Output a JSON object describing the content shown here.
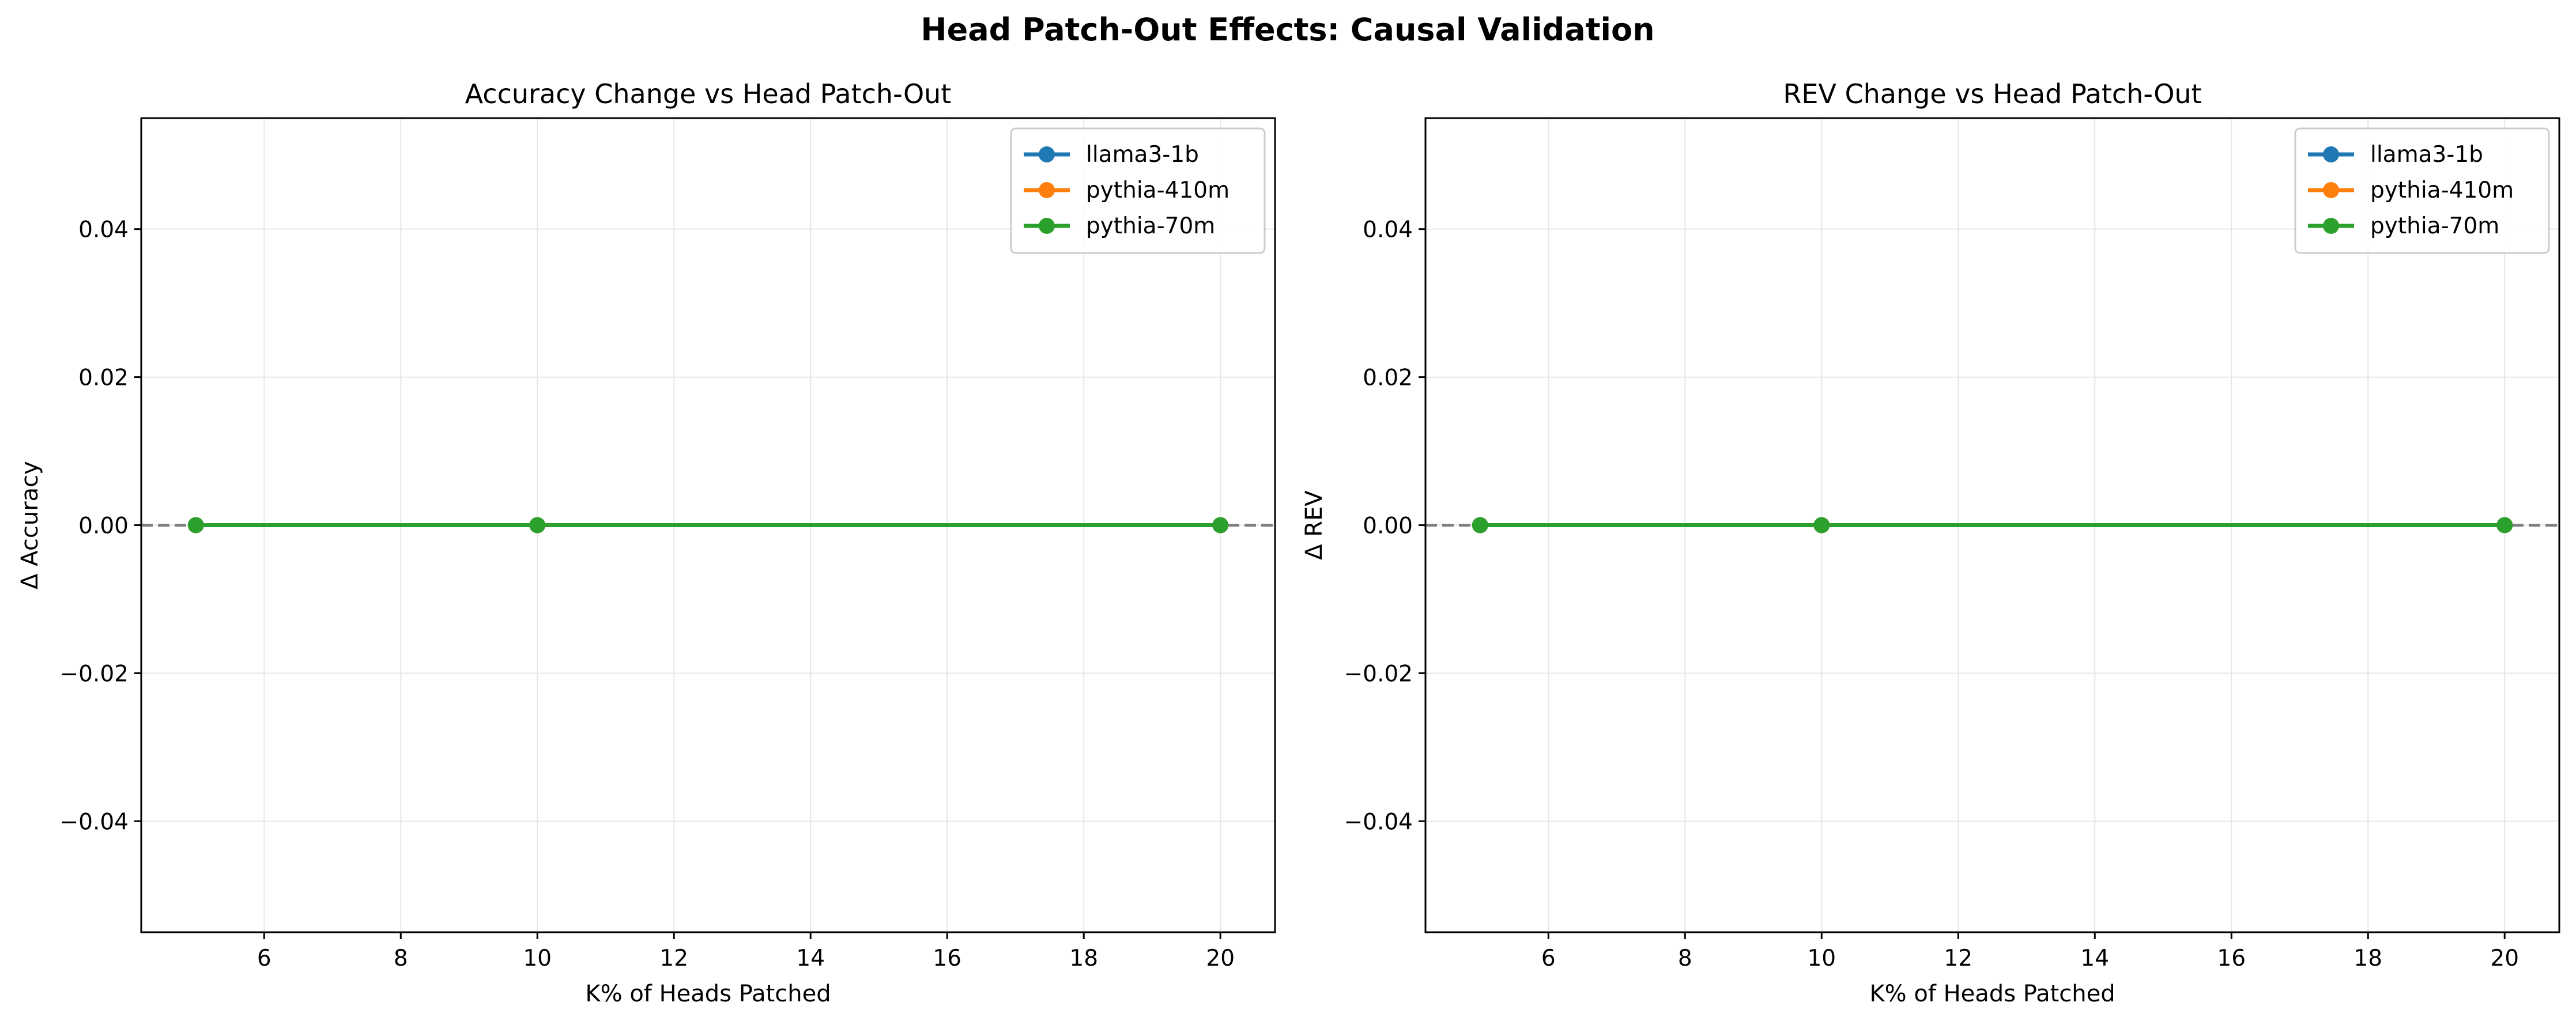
{
  "figure": {
    "title": "Head Patch-Out Effects: Causal Validation"
  },
  "chart_data": [
    {
      "type": "line",
      "title": "Accuracy Change vs Head Patch-Out",
      "xlabel": "K% of Heads Patched",
      "ylabel": "Δ Accuracy",
      "xlim": [
        4.2,
        20.8
      ],
      "ylim": [
        -0.055,
        0.055
      ],
      "xticks": [
        6,
        8,
        10,
        12,
        14,
        16,
        18,
        20
      ],
      "yticks": [
        -0.04,
        -0.02,
        0.0,
        0.02,
        0.04
      ],
      "ytick_labels": [
        "−0.04",
        "−0.02",
        "0.00",
        "0.02",
        "0.04"
      ],
      "grid": true,
      "legend_position": "top-right",
      "reference_line": {
        "y": 0,
        "style": "dashed",
        "color": "#808080"
      },
      "series": [
        {
          "name": "llama3-1b",
          "color": "#1f77b4",
          "x": [
            5,
            10,
            20
          ],
          "y": [
            0.0,
            0.0,
            0.0
          ]
        },
        {
          "name": "pythia-410m",
          "color": "#ff7f0e",
          "x": [
            5,
            10,
            20
          ],
          "y": [
            0.0,
            0.0,
            0.0
          ]
        },
        {
          "name": "pythia-70m",
          "color": "#2ca02c",
          "x": [
            5,
            10,
            20
          ],
          "y": [
            0.0,
            0.0,
            0.0
          ]
        }
      ]
    },
    {
      "type": "line",
      "title": "REV Change vs Head Patch-Out",
      "xlabel": "K% of Heads Patched",
      "ylabel": "Δ REV",
      "xlim": [
        4.2,
        20.8
      ],
      "ylim": [
        -0.055,
        0.055
      ],
      "xticks": [
        6,
        8,
        10,
        12,
        14,
        16,
        18,
        20
      ],
      "yticks": [
        -0.04,
        -0.02,
        0.0,
        0.02,
        0.04
      ],
      "ytick_labels": [
        "−0.04",
        "−0.02",
        "0.00",
        "0.02",
        "0.04"
      ],
      "grid": true,
      "legend_position": "top-right",
      "reference_line": {
        "y": 0,
        "style": "dashed",
        "color": "#808080"
      },
      "series": [
        {
          "name": "llama3-1b",
          "color": "#1f77b4",
          "x": [
            5,
            10,
            20
          ],
          "y": [
            0.0,
            0.0,
            0.0
          ]
        },
        {
          "name": "pythia-410m",
          "color": "#ff7f0e",
          "x": [
            5,
            10,
            20
          ],
          "y": [
            0.0,
            0.0,
            0.0
          ]
        },
        {
          "name": "pythia-70m",
          "color": "#2ca02c",
          "x": [
            5,
            10,
            20
          ],
          "y": [
            0.0,
            0.0,
            0.0
          ]
        }
      ]
    }
  ]
}
